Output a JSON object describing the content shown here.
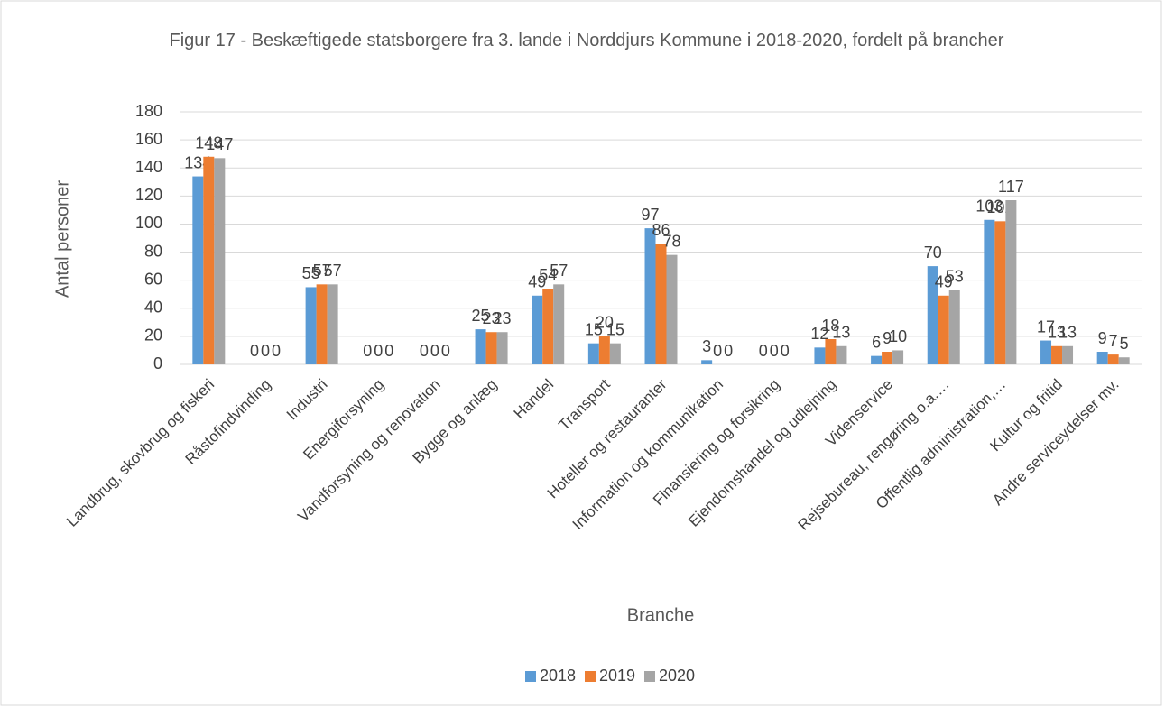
{
  "chart_data": {
    "type": "bar",
    "title": "Figur 17 - Beskæftigede statsborgere fra 3. lande i Norddjurs Kommune i 2018-2020, fordelt på brancher",
    "x_label": "Branche",
    "y_label": "Antal personer",
    "categories": [
      "Landbrug, skovbrug og fiskeri",
      "Råstofindvinding",
      "Industri",
      "Energiforsyning",
      "Vandforsyning og renovation",
      "Bygge og anlæg",
      "Handel",
      "Transport",
      "Hoteller og restauranter",
      "Information og kommunikation",
      "Finansiering og forsikring",
      "Ejendomshandel og udlejning",
      "Videnservice",
      "Rejsebureau, rengøring o.a.…",
      "Offentlig administration,…",
      "Kultur og fritid",
      "Andre serviceydelser  mv."
    ],
    "series": [
      {
        "name": "2018",
        "color": "#5b9bd5",
        "values": [
          134,
          0,
          55,
          0,
          0,
          25,
          49,
          15,
          97,
          3,
          0,
          12,
          6,
          70,
          103,
          17,
          9
        ]
      },
      {
        "name": "2019",
        "color": "#ed7d31",
        "values": [
          148,
          0,
          57,
          0,
          0,
          23,
          54,
          20,
          86,
          0,
          0,
          18,
          9,
          49,
          102,
          13,
          7
        ]
      },
      {
        "name": "2020",
        "color": "#a5a5a5",
        "values": [
          147,
          0,
          57,
          0,
          0,
          23,
          57,
          15,
          78,
          0,
          0,
          13,
          10,
          53,
          117,
          13,
          5
        ]
      }
    ],
    "ylim": [
      0,
      180
    ],
    "yticks": [
      0,
      20,
      40,
      60,
      80,
      100,
      120,
      140,
      160,
      180
    ],
    "grid": true,
    "legend": "bottom"
  }
}
